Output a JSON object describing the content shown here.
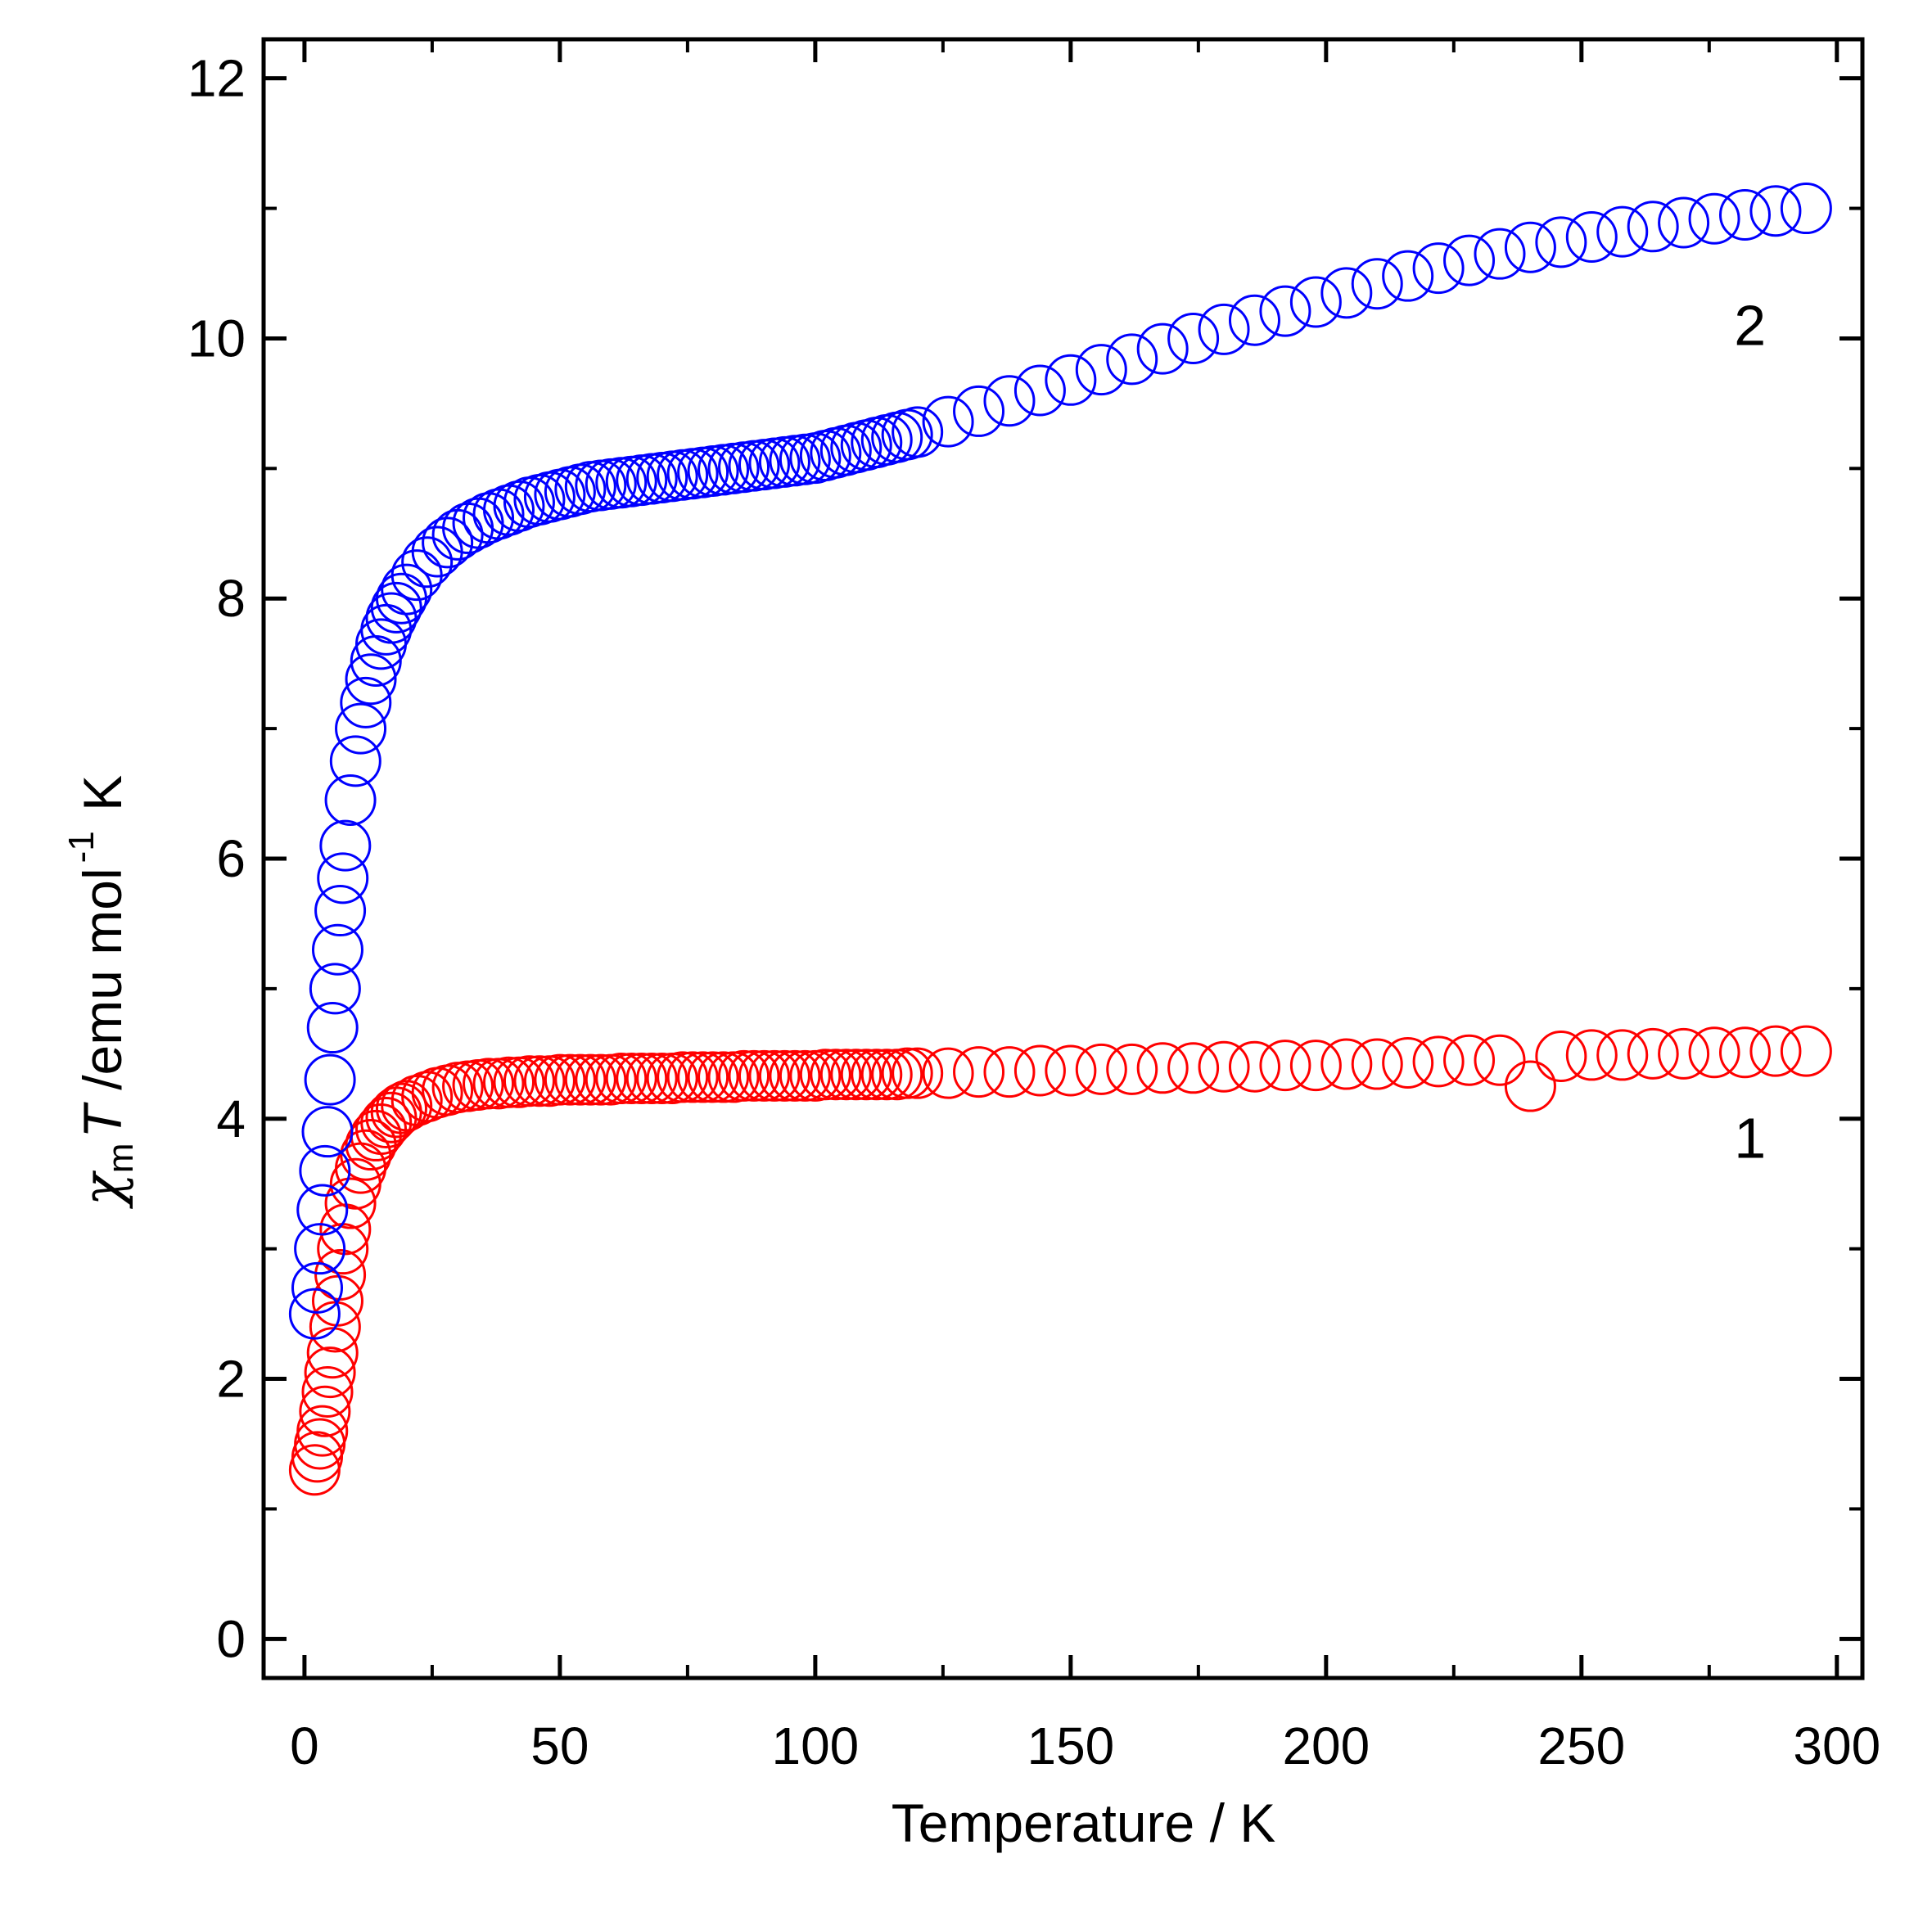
{
  "chart_data": {
    "type": "scatter",
    "xlabel": "Temperature / K",
    "ylabel": {
      "chi": "χ",
      "chi_sub": "m",
      "T": "T",
      "unit_main": " /emu mol",
      "unit_sup": "-1",
      "unit_tail": " K"
    },
    "xlim": [
      -8,
      305
    ],
    "ylim": [
      -0.3,
      12.3
    ],
    "x_ticks": [
      0,
      50,
      100,
      150,
      200,
      250,
      300
    ],
    "y_ticks": [
      0,
      2,
      4,
      6,
      8,
      10,
      12
    ],
    "x_tick_labels": [
      "0",
      "50",
      "100",
      "150",
      "200",
      "250",
      "300"
    ],
    "y_tick_labels": [
      "0",
      "2",
      "4",
      "6",
      "8",
      "10",
      "12"
    ],
    "grid": false,
    "marker": "open-circle",
    "series": [
      {
        "name": "1",
        "color": "#ff0000",
        "x": [
          2,
          2.5,
          3,
          3.5,
          4,
          4.5,
          5,
          5.5,
          6,
          6.5,
          7,
          7.5,
          8,
          9,
          10,
          11,
          12,
          13,
          14,
          15,
          16,
          17,
          18,
          19,
          20,
          22,
          24,
          26,
          28,
          30,
          32,
          34,
          36,
          38,
          40,
          42,
          44,
          46,
          48,
          50,
          52,
          54,
          56,
          58,
          60,
          62,
          64,
          66,
          68,
          70,
          72,
          74,
          76,
          78,
          80,
          82,
          84,
          86,
          88,
          90,
          92,
          94,
          96,
          98,
          100,
          102,
          104,
          106,
          108,
          110,
          112,
          114,
          116,
          118,
          120,
          126,
          132,
          138,
          144,
          150,
          156,
          162,
          168,
          174,
          180,
          186,
          192,
          198,
          204,
          210,
          216,
          222,
          228,
          234,
          240,
          246,
          252,
          258,
          264,
          270,
          276,
          282,
          288,
          294
        ],
        "y": [
          1.3,
          1.4,
          1.5,
          1.6,
          1.75,
          1.9,
          2.05,
          2.2,
          2.4,
          2.6,
          2.8,
          3.0,
          3.15,
          3.35,
          3.5,
          3.62,
          3.72,
          3.8,
          3.87,
          3.92,
          3.97,
          4.01,
          4.05,
          4.08,
          4.1,
          4.14,
          4.17,
          4.2,
          4.22,
          4.24,
          4.25,
          4.26,
          4.27,
          4.27,
          4.28,
          4.28,
          4.29,
          4.29,
          4.29,
          4.3,
          4.3,
          4.3,
          4.3,
          4.3,
          4.3,
          4.31,
          4.31,
          4.31,
          4.31,
          4.31,
          4.31,
          4.32,
          4.32,
          4.32,
          4.32,
          4.32,
          4.32,
          4.33,
          4.33,
          4.33,
          4.33,
          4.33,
          4.33,
          4.33,
          4.33,
          4.34,
          4.34,
          4.34,
          4.34,
          4.34,
          4.34,
          4.34,
          4.34,
          4.35,
          4.35,
          4.35,
          4.36,
          4.36,
          4.37,
          4.37,
          4.38,
          4.38,
          4.39,
          4.39,
          4.4,
          4.4,
          4.41,
          4.41,
          4.42,
          4.42,
          4.43,
          4.44,
          4.45,
          4.45,
          4.25,
          4.48,
          4.49,
          4.49,
          4.5,
          4.5,
          4.51,
          4.51,
          4.52,
          4.52
        ]
      },
      {
        "name": "2",
        "color": "#0000ff",
        "x": [
          2,
          2.5,
          3,
          3.5,
          4,
          4.5,
          5,
          5.5,
          6,
          6.5,
          7,
          7.5,
          8,
          9,
          10,
          11,
          12,
          13,
          14,
          15,
          16,
          17,
          18,
          19,
          20,
          22,
          24,
          26,
          28,
          30,
          32,
          34,
          36,
          38,
          40,
          42,
          44,
          46,
          48,
          50,
          52,
          54,
          56,
          58,
          60,
          62,
          64,
          66,
          68,
          70,
          72,
          74,
          76,
          78,
          80,
          82,
          84,
          86,
          88,
          90,
          92,
          94,
          96,
          98,
          100,
          102,
          104,
          106,
          108,
          110,
          112,
          114,
          116,
          118,
          120,
          126,
          132,
          138,
          144,
          150,
          156,
          162,
          168,
          174,
          180,
          186,
          192,
          198,
          204,
          210,
          216,
          222,
          228,
          234,
          240,
          246,
          252,
          258,
          264,
          270,
          276,
          282,
          288,
          294
        ],
        "y": [
          2.5,
          2.7,
          3.0,
          3.3,
          3.6,
          3.9,
          4.3,
          4.7,
          5.0,
          5.3,
          5.6,
          5.85,
          6.1,
          6.45,
          6.75,
          7.0,
          7.2,
          7.38,
          7.52,
          7.65,
          7.76,
          7.85,
          7.93,
          8.0,
          8.07,
          8.18,
          8.28,
          8.36,
          8.43,
          8.49,
          8.54,
          8.58,
          8.62,
          8.65,
          8.68,
          8.71,
          8.74,
          8.76,
          8.78,
          8.8,
          8.82,
          8.84,
          8.86,
          8.87,
          8.88,
          8.89,
          8.9,
          8.91,
          8.92,
          8.93,
          8.94,
          8.95,
          8.96,
          8.97,
          8.98,
          8.99,
          9.0,
          9.01,
          9.02,
          9.03,
          9.04,
          9.05,
          9.06,
          9.07,
          9.08,
          9.1,
          9.12,
          9.14,
          9.16,
          9.18,
          9.2,
          9.22,
          9.24,
          9.26,
          9.28,
          9.36,
          9.44,
          9.52,
          9.6,
          9.68,
          9.76,
          9.84,
          9.92,
          10.0,
          10.07,
          10.14,
          10.21,
          10.28,
          10.35,
          10.42,
          10.48,
          10.54,
          10.6,
          10.65,
          10.7,
          10.74,
          10.78,
          10.82,
          10.86,
          10.89,
          10.92,
          10.95,
          10.98,
          11.0
        ]
      }
    ],
    "annotations": [
      {
        "text": "2",
        "series": "2",
        "x": 283,
        "y": 10.1
      },
      {
        "text": "1",
        "series": "1",
        "x": 283,
        "y": 3.85
      }
    ]
  }
}
